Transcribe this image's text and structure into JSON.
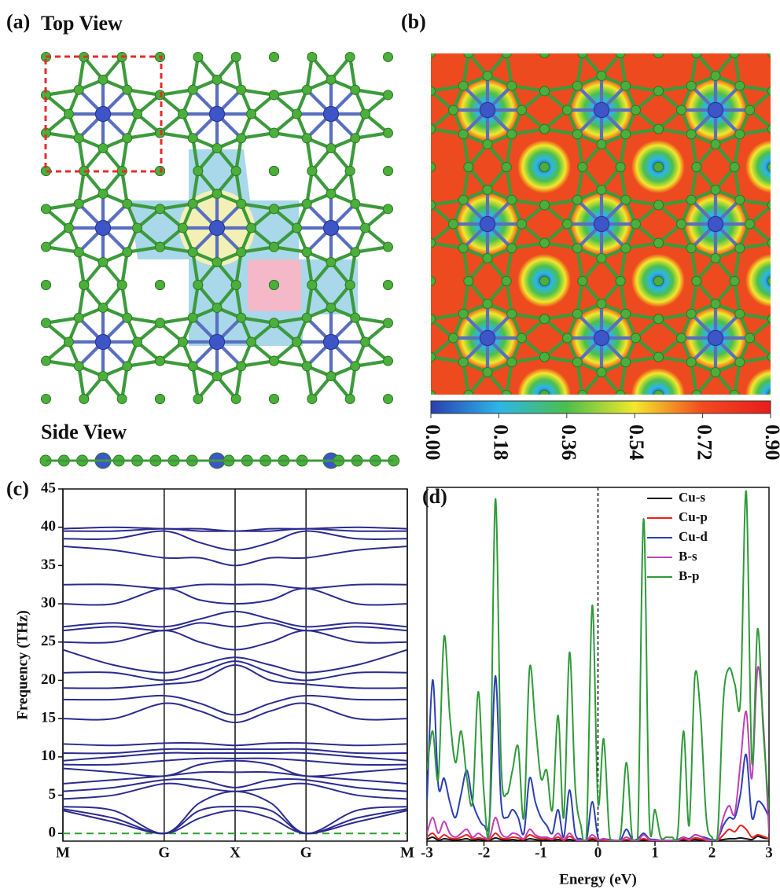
{
  "panel_a": {
    "label": "(a)",
    "top_title": "Top View",
    "side_title": "Side View"
  },
  "panel_b": {
    "label": "(b)",
    "colorbar": {
      "colors": [
        "#2a3fb0",
        "#2cb6e8",
        "#4bbf4b",
        "#f2e82a",
        "#f24a1e",
        "#e81c1c"
      ],
      "ticks": [
        {
          "value": 0,
          "label": "0.00"
        },
        {
          "value": 0.18,
          "label": "0.18"
        },
        {
          "value": 0.36,
          "label": "0.36"
        },
        {
          "value": 0.54,
          "label": "0.54"
        },
        {
          "value": 0.72,
          "label": "0.72"
        },
        {
          "value": 0.9,
          "label": "0.90"
        }
      ]
    }
  },
  "chart_data": [
    {
      "type": "line",
      "panel_label": "(c)",
      "ylabel": "Frequency (THz)",
      "x": [
        0,
        0.5,
        1,
        1.35,
        1.7,
        2.05,
        2.4,
        2.9,
        3.4
      ],
      "xlim": [
        0,
        3.4
      ],
      "xticks": [
        {
          "value": 0,
          "label": "M"
        },
        {
          "value": 1,
          "label": "G"
        },
        {
          "value": 1.7,
          "label": "X"
        },
        {
          "value": 2.4,
          "label": "G"
        },
        {
          "value": 3.4,
          "label": "M"
        }
      ],
      "ylim": [
        -1,
        45
      ],
      "yticks": [
        0,
        5,
        10,
        15,
        20,
        25,
        30,
        35,
        40,
        45
      ],
      "zero_line": {
        "value": 0,
        "color": "#2ca02c"
      },
      "series": [
        {
          "color": "#2b2b8f",
          "values": [
            3,
            1.5,
            0,
            2,
            3,
            2,
            0,
            1.5,
            3
          ]
        },
        {
          "color": "#2b2b8f",
          "values": [
            3.2,
            2,
            0,
            3,
            3.5,
            3,
            0,
            2,
            3.2
          ]
        },
        {
          "color": "#2b2b8f",
          "values": [
            3.5,
            3,
            0,
            4,
            5.5,
            4,
            0,
            3,
            3.5
          ]
        },
        {
          "color": "#2b2b8f",
          "values": [
            4.5,
            5,
            6.5,
            6,
            5.5,
            6,
            6.5,
            5,
            4.5
          ]
        },
        {
          "color": "#2b2b8f",
          "values": [
            5.5,
            6,
            7,
            7,
            6,
            7,
            7,
            6,
            5.5
          ]
        },
        {
          "color": "#2b2b8f",
          "values": [
            6.5,
            7,
            7.5,
            8,
            8,
            8,
            7.5,
            7,
            6.5
          ]
        },
        {
          "color": "#2b2b8f",
          "values": [
            8.5,
            8,
            7.5,
            9,
            9.5,
            9,
            7.5,
            8,
            8.5
          ]
        },
        {
          "color": "#2b2b8f",
          "values": [
            9,
            9,
            9.5,
            9.8,
            9.8,
            9.8,
            9.5,
            9,
            9
          ]
        },
        {
          "color": "#2b2b8f",
          "values": [
            9.5,
            10,
            10.5,
            10.5,
            10.5,
            10.5,
            10.5,
            10,
            9.5
          ]
        },
        {
          "color": "#2b2b8f",
          "values": [
            10.5,
            10.5,
            11,
            11,
            11,
            11,
            11,
            10.5,
            10.5
          ]
        },
        {
          "color": "#2b2b8f",
          "values": [
            11.7,
            11.5,
            11.8,
            11.8,
            11.5,
            11.8,
            11.8,
            11.5,
            11.7
          ]
        },
        {
          "color": "#2b2b8f",
          "values": [
            15,
            15,
            17,
            16,
            14.5,
            16,
            17,
            15,
            15
          ]
        },
        {
          "color": "#2b2b8f",
          "values": [
            17.5,
            17.5,
            18,
            17,
            15.5,
            17,
            18,
            17.5,
            17.5
          ]
        },
        {
          "color": "#2b2b8f",
          "values": [
            19,
            19,
            19.5,
            20,
            22,
            20,
            19.5,
            19,
            19
          ]
        },
        {
          "color": "#2b2b8f",
          "values": [
            21,
            21,
            20,
            21,
            22.5,
            21,
            20,
            21,
            21
          ]
        },
        {
          "color": "#2b2b8f",
          "values": [
            24,
            22,
            21,
            22,
            23,
            22,
            21,
            22,
            24
          ]
        },
        {
          "color": "#2b2b8f",
          "values": [
            25,
            25,
            26.5,
            25,
            24,
            25,
            26.5,
            25,
            25
          ]
        },
        {
          "color": "#2b2b8f",
          "values": [
            26.5,
            27,
            26.5,
            27.5,
            27,
            27.5,
            26.5,
            27,
            26.5
          ]
        },
        {
          "color": "#2b2b8f",
          "values": [
            27,
            27.5,
            27,
            28,
            29,
            28,
            27,
            27.5,
            27
          ]
        },
        {
          "color": "#2b2b8f",
          "values": [
            30,
            30,
            32,
            30.5,
            30,
            30.5,
            32,
            30,
            30
          ]
        },
        {
          "color": "#2b2b8f",
          "values": [
            32.5,
            32.5,
            32,
            32.5,
            32.5,
            32.5,
            32,
            32.5,
            32.5
          ]
        },
        {
          "color": "#2b2b8f",
          "values": [
            37.5,
            37,
            36,
            36,
            35,
            36,
            36,
            37,
            37.5
          ]
        },
        {
          "color": "#2b2b8f",
          "values": [
            38.5,
            38.5,
            39.5,
            38,
            37,
            38,
            39.5,
            38.5,
            38.5
          ]
        },
        {
          "color": "#2b2b8f",
          "values": [
            39.5,
            39.5,
            39.8,
            39.5,
            39.5,
            39.5,
            39.8,
            39.5,
            39.5
          ]
        },
        {
          "color": "#2b2b8f",
          "values": [
            39.8,
            40,
            39.8,
            39.8,
            39.5,
            39.8,
            39.8,
            40,
            39.8
          ]
        }
      ]
    },
    {
      "type": "line",
      "panel_label": "(d)",
      "xlabel": "Energy (eV)",
      "x": [
        -3,
        -2.9,
        -2.8,
        -2.7,
        -2.6,
        -2.5,
        -2.4,
        -2.3,
        -2.2,
        -2.1,
        -2,
        -1.9,
        -1.8,
        -1.7,
        -1.6,
        -1.5,
        -1.4,
        -1.3,
        -1.2,
        -1.1,
        -1,
        -0.9,
        -0.8,
        -0.7,
        -0.6,
        -0.5,
        -0.4,
        -0.3,
        -0.2,
        -0.1,
        0,
        0.1,
        0.2,
        0.3,
        0.4,
        0.5,
        0.6,
        0.7,
        0.8,
        0.9,
        1,
        1.1,
        1.2,
        1.3,
        1.4,
        1.5,
        1.6,
        1.7,
        1.8,
        1.9,
        2,
        2.1,
        2.2,
        2.3,
        2.4,
        2.5,
        2.6,
        2.7,
        2.8,
        2.9,
        3
      ],
      "xlim": [
        -3,
        3
      ],
      "xticks": [
        -3,
        -2,
        -1,
        0,
        1,
        2,
        3
      ],
      "ylim": [
        0,
        45
      ],
      "fermi_level": 0,
      "legend": "upper right",
      "series": [
        {
          "name": "Cu-s",
          "color": "#111111",
          "values": [
            0.2,
            0.5,
            0.1,
            0.3,
            0.2,
            0.1,
            0.2,
            0.3,
            0.1,
            0.2,
            0.1,
            0.1,
            0.4,
            0.2,
            0.1,
            0.2,
            0.1,
            0.1,
            0.3,
            0.2,
            0.1,
            0.1,
            0.1,
            0.2,
            0.1,
            0.2,
            0.1,
            0.1,
            0.1,
            0.2,
            0.1,
            0.1,
            0.1,
            0.1,
            0.1,
            0.1,
            0.1,
            0.1,
            0.1,
            0.1,
            0.1,
            0.1,
            0.1,
            0.1,
            0.1,
            0.1,
            0.1,
            0.2,
            0.1,
            0.1,
            0.1,
            0.1,
            0.2,
            0.3,
            0.3,
            0.4,
            0.3,
            0.2,
            0.6,
            0.4,
            0.3
          ]
        },
        {
          "name": "Cu-p",
          "color": "#e8231e",
          "values": [
            0.5,
            1,
            0.3,
            0.8,
            0.4,
            0.3,
            0.5,
            0.8,
            0.3,
            0.4,
            0.3,
            0.2,
            1,
            0.4,
            0.3,
            0.5,
            0.4,
            0.2,
            0.8,
            0.5,
            0.3,
            0.3,
            0.2,
            0.5,
            0.1,
            0.6,
            0.2,
            0.1,
            0.1,
            0.4,
            0.1,
            0.1,
            0.1,
            0.1,
            0.1,
            0.2,
            0.1,
            0.1,
            0.3,
            0.1,
            0.1,
            0.1,
            0.1,
            0.1,
            0.1,
            0.3,
            0.1,
            0.4,
            0.3,
            0.1,
            0.1,
            0.1,
            0.8,
            1.5,
            1.2,
            2,
            1.5,
            0.5,
            0.8,
            0.6,
            0.3
          ]
        },
        {
          "name": "Cu-d",
          "color": "#2b3fb5",
          "values": [
            5,
            20.5,
            7,
            8,
            5,
            3,
            6,
            9,
            5,
            3,
            2,
            3,
            21,
            5,
            3,
            4,
            3,
            1,
            8,
            5,
            3,
            2,
            1,
            4,
            0.5,
            6.5,
            1,
            0.3,
            0.2,
            5,
            0.5,
            0.3,
            0.2,
            0.1,
            0.2,
            1.5,
            0.2,
            0.3,
            1,
            0.3,
            0.2,
            0.1,
            0.1,
            0.1,
            0.2,
            0.5,
            0.3,
            0.8,
            0.6,
            0.4,
            0.2,
            0.3,
            2,
            3,
            3,
            6,
            11,
            3,
            5,
            4.5,
            3
          ]
        },
        {
          "name": "B-s",
          "color": "#c03fb8",
          "values": [
            1,
            3,
            1,
            2.5,
            1,
            0.5,
            1,
            1.5,
            0.5,
            1,
            0.5,
            0.5,
            3,
            1,
            0.5,
            1,
            0.8,
            0.3,
            1.5,
            0.8,
            0.5,
            0.5,
            0.3,
            1,
            0.2,
            1,
            0.2,
            0.1,
            0.1,
            0.8,
            0.2,
            0.3,
            0.1,
            0.1,
            0.1,
            0.5,
            0.1,
            0.1,
            0.8,
            0.2,
            0.1,
            0.1,
            0.1,
            0.1,
            0.1,
            0.5,
            0.2,
            0.8,
            0.6,
            0.2,
            0.1,
            0.1,
            3,
            4.5,
            3.5,
            10,
            16.5,
            8,
            22,
            15,
            1
          ]
        },
        {
          "name": "B-p",
          "color": "#2f9a3a",
          "values": [
            9,
            14,
            8,
            26,
            16,
            10,
            14,
            8,
            5,
            19,
            6,
            3,
            43.5,
            10,
            6,
            9,
            12,
            3,
            22,
            15,
            8,
            9,
            4,
            16,
            3,
            24,
            7,
            2,
            1,
            30,
            5,
            13,
            1,
            0,
            1,
            10,
            0.5,
            1,
            41,
            3,
            4,
            0.5,
            0.5,
            0.5,
            1,
            14,
            2,
            21,
            16,
            3,
            0.5,
            1,
            18,
            22,
            20,
            18,
            44.5,
            10,
            27,
            14,
            4
          ]
        }
      ]
    }
  ]
}
